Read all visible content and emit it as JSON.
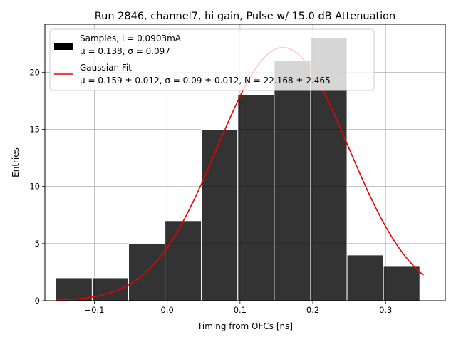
{
  "chart_data": {
    "type": "bar",
    "title": "Run 2846, channel7, hi gain, Pulse w/ 15.0 dB Attenuation",
    "xlabel": "Timing from OFCs [ns]",
    "ylabel": "Entries",
    "xlim": [
      -0.168,
      0.382
    ],
    "ylim": [
      0,
      24.2
    ],
    "grid": true,
    "legend_position": "upper-left",
    "xticks": [
      {
        "value": -0.1,
        "label": "−0.1"
      },
      {
        "value": 0.0,
        "label": "0.0"
      },
      {
        "value": 0.1,
        "label": "0.1"
      },
      {
        "value": 0.2,
        "label": "0.2"
      },
      {
        "value": 0.3,
        "label": "0.3"
      }
    ],
    "yticks": [
      {
        "value": 0,
        "label": "0"
      },
      {
        "value": 5,
        "label": "5"
      },
      {
        "value": 10,
        "label": "10"
      },
      {
        "value": 15,
        "label": "15"
      },
      {
        "value": 20,
        "label": "20"
      }
    ],
    "histogram": {
      "name_line1": "Samples, I = 0.0903mA",
      "name_line2": "μ = 0.138, σ = 0.097",
      "color": "#000000",
      "bin_edges": [
        -0.153,
        -0.103,
        -0.053,
        -0.003,
        0.047,
        0.097,
        0.147,
        0.197,
        0.247,
        0.297,
        0.347
      ],
      "counts": [
        2,
        2,
        5,
        7,
        15,
        18,
        21,
        23,
        4,
        3
      ]
    },
    "fit": {
      "name_line1": "Gaussian Fit",
      "name_line2": "μ = 0.159 ± 0.012, σ = 0.09 ± 0.012, N = 22.168 ± 2.465",
      "color": "#ee0000",
      "mu": 0.159,
      "sigma": 0.09,
      "N": 22.168,
      "x_range": [
        -0.153,
        0.352
      ]
    }
  }
}
